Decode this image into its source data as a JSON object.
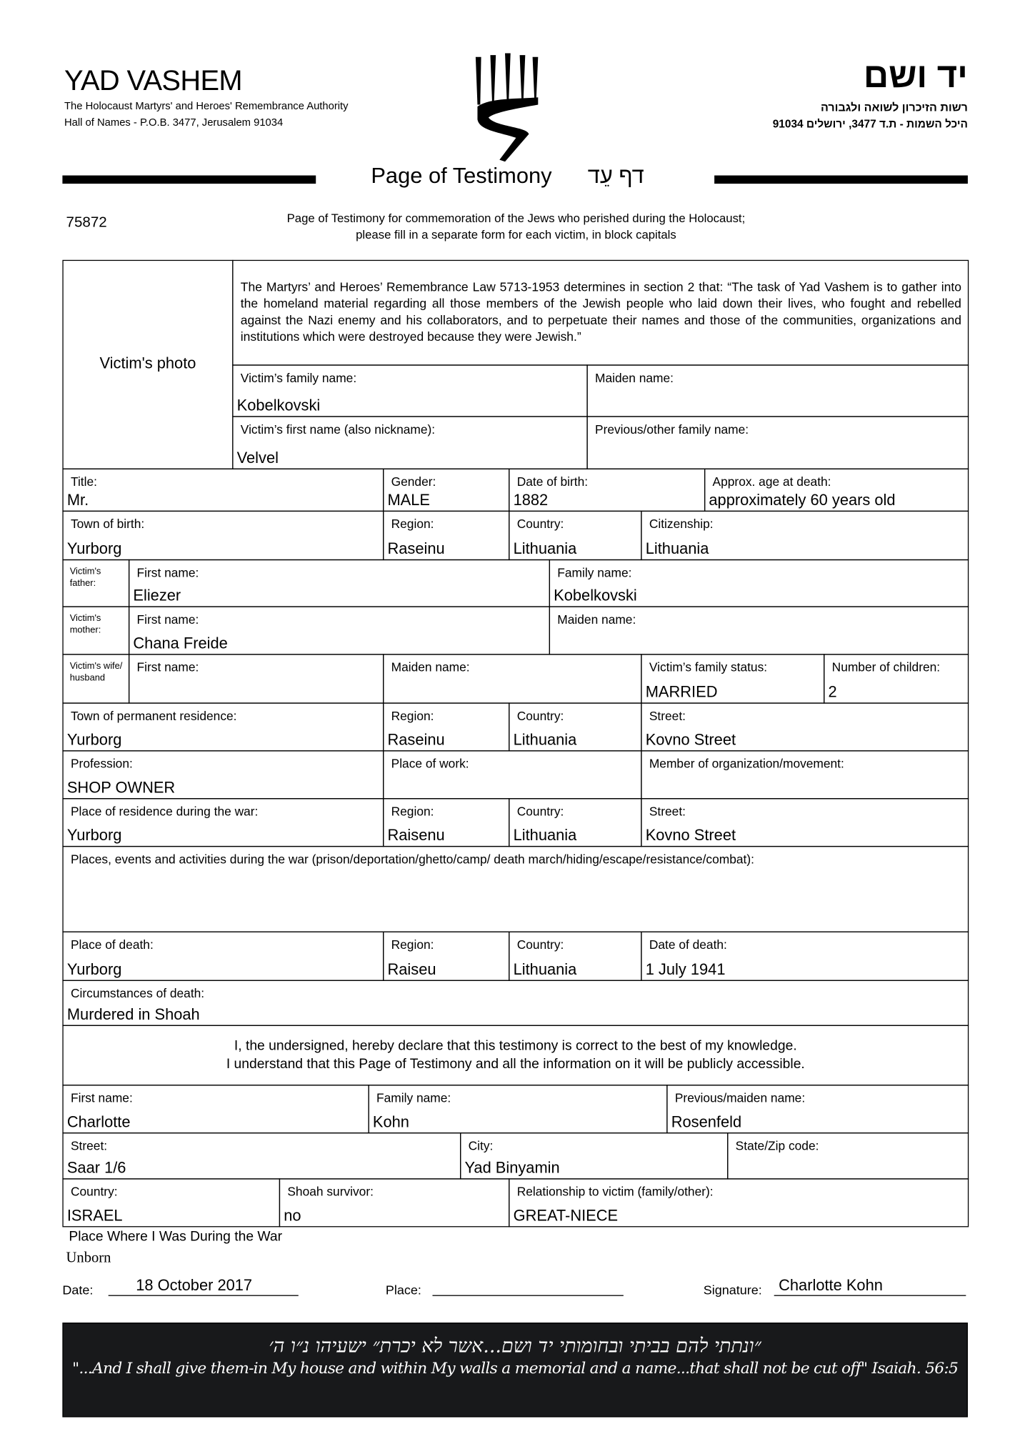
{
  "header": {
    "org_name": "YAD VASHEM",
    "org_subtitle": "The Holocaust Martyrs' and Heroes' Remembrance Authority",
    "org_address": "Hall of Names - P.O.B. 3477, Jerusalem 91034",
    "org_name_hebrew": "יד ושם",
    "org_subtitle_hebrew": "רשות הזיכרון לשואה ולגבורה",
    "org_address_hebrew": "היכל השמות - ת.ד 3477, ירושלים 91034",
    "title": "Page of Testimony",
    "title_hebrew": "דף עֵד",
    "form_number": "75872",
    "instructions_line1": "Page of Testimony for commemoration of the Jews who perished during the Holocaust;",
    "instructions_line2": "please fill in a separate form for each victim, in block capitals"
  },
  "victim": {
    "photo_label": "Victim's photo",
    "law_text": "The Martyrs’ and Heroes’ Remembrance Law 5713-1953 determines in section 2 that: “The task of Yad Vashem is to gather into the homeland material regarding all those members of the Jewish people who laid down their lives, who fought and rebelled against the Nazi enemy and his collaborators, and to perpetuate their names and those of the communities, organizations and institutions which were destroyed because they were Jewish.”",
    "family_name": {
      "label": "Victim’s family name:",
      "value": "Kobelkovski"
    },
    "maiden_name": {
      "label": "Maiden name:",
      "value": ""
    },
    "first_name": {
      "label": "Victim’s first name (also nickname):",
      "value": "Velvel"
    },
    "other_family_name": {
      "label": "Previous/other family name:",
      "value": ""
    },
    "title": {
      "label": "Title:",
      "value": "Mr."
    },
    "gender": {
      "label": "Gender:",
      "value": "MALE"
    },
    "date_of_birth": {
      "label": "Date of birth:",
      "value": "1882"
    },
    "age_at_death": {
      "label": "Approx. age at death:",
      "value": "approximately 60 years old"
    },
    "town_of_birth": {
      "label": "Town of birth:",
      "value": "Yurborg"
    },
    "birth_region": {
      "label": "Region:",
      "value": "Raseinu"
    },
    "birth_country": {
      "label": "Country:",
      "value": "Lithuania"
    },
    "citizenship": {
      "label": "Citizenship:",
      "value": "Lithuania"
    },
    "father_label": "Victim's father:",
    "father_first": {
      "label": "First name:",
      "value": "Eliezer"
    },
    "father_family": {
      "label": "Family name:",
      "value": "Kobelkovski"
    },
    "mother_label": "Victim's mother:",
    "mother_first": {
      "label": "First name:",
      "value": "Chana Freide"
    },
    "mother_maiden": {
      "label": "Maiden name:",
      "value": ""
    },
    "spouse_label": "Victim's wife/ husband",
    "spouse_first": {
      "label": "First name:",
      "value": ""
    },
    "spouse_maiden": {
      "label": "Maiden name:",
      "value": ""
    },
    "family_status": {
      "label": "Victim’s family status:",
      "value": "MARRIED"
    },
    "children": {
      "label": "Number of children:",
      "value": "2"
    },
    "residence_town": {
      "label": "Town of permanent residence:",
      "value": "Yurborg"
    },
    "residence_region": {
      "label": "Region:",
      "value": "Raseinu"
    },
    "residence_country": {
      "label": "Country:",
      "value": "Lithuania"
    },
    "residence_street": {
      "label": "Street:",
      "value": "Kovno Street"
    },
    "profession": {
      "label": "Profession:",
      "value": "SHOP OWNER"
    },
    "place_of_work": {
      "label": "Place of work:",
      "value": ""
    },
    "organization": {
      "label": "Member of organization/movement:",
      "value": ""
    },
    "war_town": {
      "label": "Place of residence during the war:",
      "value": "Yurborg"
    },
    "war_region": {
      "label": "Region:",
      "value": "Raisenu"
    },
    "war_country": {
      "label": "Country:",
      "value": "Lithuania"
    },
    "war_street": {
      "label": "Street:",
      "value": "Kovno Street"
    },
    "war_events": {
      "label": "Places, events and activities during the war (prison/deportation/ghetto/camp/ death march/hiding/escape/resistance/combat):",
      "value": ""
    },
    "death_place": {
      "label": "Place of death:",
      "value": "Yurborg"
    },
    "death_region": {
      "label": "Region:",
      "value": "Raiseu"
    },
    "death_country": {
      "label": "Country:",
      "value": "Lithuania"
    },
    "death_date": {
      "label": "Date of death:",
      "value": "1 July 1941"
    },
    "death_circumstances": {
      "label": "Circumstances of death:",
      "value": "Murdered in Shoah"
    }
  },
  "declaration": {
    "line1": "I, the undersigned, hereby declare that this testimony is correct to the best of my knowledge.",
    "line2": "I understand that this Page of Testimony and all the information on it will be publicly accessible."
  },
  "submitter": {
    "first_name": {
      "label": "First name:",
      "value": "Charlotte"
    },
    "family_name": {
      "label": "Family name:",
      "value": "Kohn"
    },
    "maiden_name": {
      "label": "Previous/maiden name:",
      "value": "Rosenfeld"
    },
    "street": {
      "label": "Street:",
      "value": "Saar 1/6"
    },
    "city": {
      "label": "City:",
      "value": "Yad Binyamin"
    },
    "zip": {
      "label": "State/Zip code:",
      "value": ""
    },
    "country": {
      "label": "Country:",
      "value": "ISRAEL"
    },
    "survivor": {
      "label": "Shoah survivor:",
      "value": "no"
    },
    "relationship": {
      "label": "Relationship to victim (family/other):",
      "value": "GREAT-NIECE"
    },
    "war_place_label": "Place Where I Was During the War",
    "war_place_value": "Unborn",
    "date_label": "Date:",
    "date_value": "18 October 2017",
    "place_label": "Place:",
    "place_value": "",
    "signature_label": "Signature:",
    "signature_value": "Charlotte Kohn"
  },
  "footer": {
    "quote_hebrew": "״ונתתי להם בביתי ובחומותי יד ושם...אשר לא יכרת״ ישעיהו נ״ו ה׳",
    "quote_english": "\"...And I shall give them-in My house and within My walls a memorial and a name...that shall not be cut off\" Isaiah. 56:5",
    "background_color": "#18191b"
  }
}
